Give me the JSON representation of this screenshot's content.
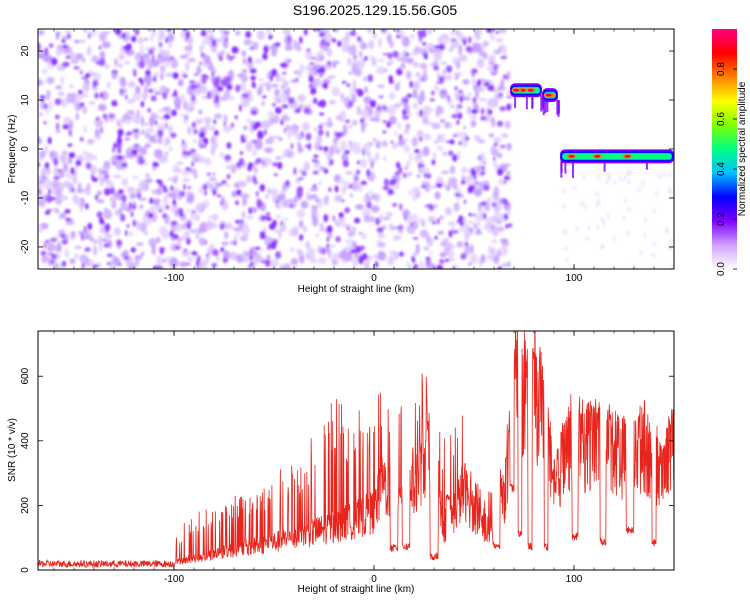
{
  "title": "S196.2025.129.15.56.G05",
  "chart_data": [
    {
      "type": "heatmap",
      "xlabel": "Height of straight line (km)",
      "ylabel": "Frequency (Hz)",
      "xlim": [
        -168,
        150
      ],
      "ylim": [
        -24.5,
        24.5
      ],
      "xticks": [
        -100,
        0,
        100
      ],
      "yticks": [
        -20,
        -10,
        0,
        10,
        20
      ],
      "colorbar": {
        "label": "Normalized spectral amplitude",
        "range": [
          0,
          0.96
        ],
        "ticks": [
          0.0,
          0.2,
          0.4,
          0.6,
          0.8
        ],
        "colormap": [
          "#ffffff",
          "#d0a0ff",
          "#7f00ff",
          "#0000ff",
          "#00c0ff",
          "#00ff80",
          "#80ff00",
          "#ffff00",
          "#ff8000",
          "#ff0000",
          "#ff0080"
        ]
      },
      "noise_region_x": [
        -168,
        68
      ],
      "tracks": [
        {
          "x": [
            68,
            84
          ],
          "freq_hz": 12,
          "peak_amplitude": 0.9
        },
        {
          "x": [
            84,
            92
          ],
          "freq_hz": 11,
          "peak_amplitude": 0.5
        },
        {
          "x": [
            93,
            150
          ],
          "freq_hz": -1.5,
          "peak_amplitude": 0.85
        }
      ]
    },
    {
      "type": "line",
      "xlabel": "Height of straight line (km)",
      "ylabel": "SNR (10 * v/v)",
      "xlim": [
        -168,
        150
      ],
      "ylim": [
        0,
        740
      ],
      "xticks": [
        -100,
        0,
        100
      ],
      "yticks": [
        0,
        200,
        400,
        600
      ],
      "grid": false,
      "series": [
        {
          "color": "#e8241c",
          "envelope": {
            "x": [
              -168,
              -110,
              -100,
              -90,
              -80,
              -70,
              -60,
              -50,
              -40,
              -30,
              -20,
              -10,
              0,
              5,
              10,
              15,
              20,
              25,
              30,
              35,
              40,
              45,
              50,
              55,
              60,
              65,
              68,
              70,
              75,
              80,
              85,
              88,
              90,
              95,
              100,
              105,
              110,
              115,
              120,
              125,
              130,
              135,
              140,
              145,
              150
            ],
            "base": [
              15,
              15,
              25,
              40,
              55,
              70,
              80,
              95,
              110,
              130,
              150,
              170,
              200,
              300,
              250,
              350,
              300,
              380,
              400,
              150,
              200,
              280,
              200,
              150,
              120,
              250,
              380,
              680,
              620,
              600,
              550,
              380,
              230,
              410,
              450,
              420,
              440,
              430,
              420,
              380,
              390,
              430,
              360,
              350,
              450
            ],
            "spike_max": [
              40,
              40,
              120,
              180,
              200,
              230,
              250,
              300,
              340,
              420,
              560,
              460,
              600,
              580,
              450,
              620,
              500,
              640,
              470,
              420,
              460,
              500,
              300,
              230,
              260,
              380,
              520,
              740,
              700,
              690,
              650,
              470,
              350,
              480,
              540,
              520,
              540,
              520,
              500,
              480,
              480,
              540,
              430,
              380,
              530
            ]
          },
          "dips": [
            {
              "x": [
                8,
                12
              ],
              "level": 55
            },
            {
              "x": [
                14,
                18
              ],
              "level": 60
            },
            {
              "x": [
                28,
                32
              ],
              "level": 30
            },
            {
              "x": [
                36,
                38
              ],
              "level": 210
            },
            {
              "x": [
                60,
                63
              ],
              "level": 60
            },
            {
              "x": [
                68,
                70
              ],
              "level": 240
            },
            {
              "x": [
                72,
                74
              ],
              "level": 100
            },
            {
              "x": [
                77,
                79
              ],
              "level": 60
            },
            {
              "x": [
                85,
                87
              ],
              "level": 60
            },
            {
              "x": [
                99,
                102
              ],
              "level": 90
            },
            {
              "x": [
                113,
                116
              ],
              "level": 75
            },
            {
              "x": [
                126,
                130
              ],
              "level": 110
            },
            {
              "x": [
                139,
                141
              ],
              "level": 70
            }
          ]
        }
      ]
    }
  ]
}
